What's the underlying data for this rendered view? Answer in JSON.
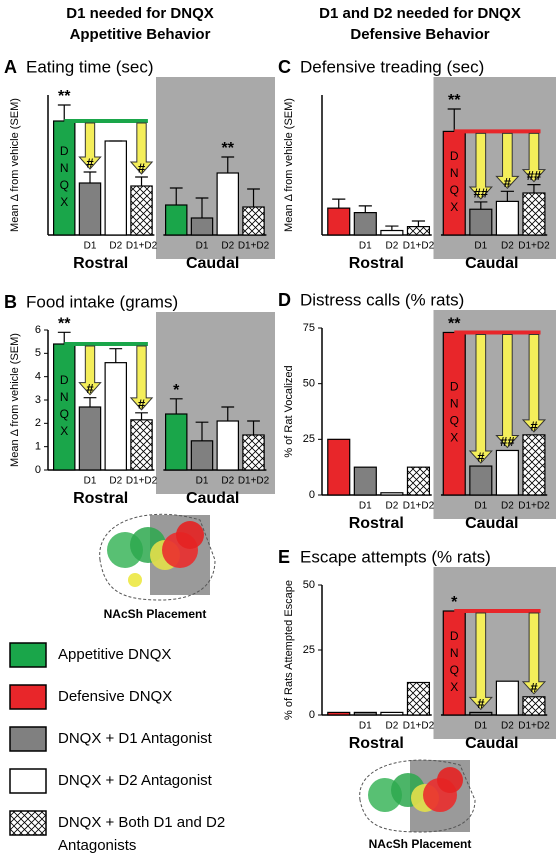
{
  "headings": [
    [
      "D1 needed for DNQX",
      "Appetitive Behavior"
    ],
    [
      "D1 and D2 needed for DNQX",
      "Defensive Behavior"
    ]
  ],
  "chart_data": [
    {
      "type": "bar",
      "panel": "A",
      "title": "Eating time (sec)",
      "ylabel": "Mean Δ  from vehicle (SEM)",
      "ylim": [
        0,
        700
      ],
      "categories": [
        null,
        "D1",
        "D2",
        "D1+D2"
      ],
      "bar_colors": [
        "#1aa64a",
        "#808080",
        "#ffffff",
        "#ffffff"
      ],
      "hatched": [
        false,
        false,
        false,
        true
      ],
      "arrow_color": "#f4ee5a",
      "shade_color": "#a9a9a9",
      "groups": [
        {
          "label": "Rostral",
          "bar_text": "DNQX",
          "values": [
            570,
            260,
            470,
            245
          ],
          "errors": [
            80,
            55,
            0,
            45
          ],
          "annotations": [
            "**",
            "#",
            null,
            "#"
          ]
        },
        {
          "label": "Caudal",
          "shaded": true,
          "values": [
            150,
            85,
            310,
            140
          ],
          "errors": [
            85,
            100,
            80,
            90
          ],
          "annotations": [
            null,
            null,
            "**",
            null
          ]
        }
      ]
    },
    {
      "type": "bar",
      "panel": "B",
      "title": "Food intake (grams)",
      "ylabel": "Mean Δ  from vehicle (SEM)",
      "ylim": [
        0,
        6
      ],
      "yticks": [
        0,
        1,
        2,
        3,
        4,
        5,
        6
      ],
      "categories": [
        null,
        "D1",
        "D2",
        "D1+D2"
      ],
      "bar_colors": [
        "#1aa64a",
        "#808080",
        "#ffffff",
        "#ffffff"
      ],
      "hatched": [
        false,
        false,
        false,
        true
      ],
      "arrow_color": "#f4ee5a",
      "shade_color": "#a9a9a9",
      "groups": [
        {
          "label": "Rostral",
          "bar_text": "DNQX",
          "values": [
            5.4,
            2.7,
            4.6,
            2.15
          ],
          "errors": [
            0.5,
            0.4,
            0.6,
            0.3
          ],
          "annotations": [
            "**",
            "#",
            null,
            "#"
          ]
        },
        {
          "label": "Caudal",
          "shaded": true,
          "values": [
            2.4,
            1.25,
            2.1,
            1.5
          ],
          "errors": [
            0.65,
            0.8,
            0.6,
            0.6
          ],
          "annotations": [
            "*",
            null,
            null,
            null
          ]
        }
      ]
    },
    {
      "type": "bar",
      "panel": "C",
      "title": "Defensive treading (sec)",
      "ylabel": "Mean Δ  from vehicle (SEM)",
      "ylim": [
        0,
        25
      ],
      "categories": [
        null,
        "D1",
        "D2",
        "D1+D2"
      ],
      "bar_colors": [
        "#e8262a",
        "#808080",
        "#ffffff",
        "#ffffff"
      ],
      "hatched": [
        false,
        false,
        false,
        true
      ],
      "arrow_color": "#f4ee5a",
      "shade_color": "#a9a9a9",
      "groups": [
        {
          "label": "Rostral",
          "values": [
            4.8,
            4,
            0.8,
            1.5
          ],
          "errors": [
            1.6,
            1.2,
            0.8,
            1
          ],
          "annotations": [
            null,
            null,
            null,
            null
          ]
        },
        {
          "label": "Caudal",
          "shaded": true,
          "bar_text": "DNQX",
          "values": [
            18.5,
            4.6,
            6,
            7.5
          ],
          "errors": [
            4,
            1.3,
            1.8,
            1.5
          ],
          "annotations": [
            "**",
            "##",
            "#",
            "##"
          ]
        }
      ]
    },
    {
      "type": "bar",
      "panel": "D",
      "title": "Distress calls (% rats)",
      "ylabel": "% of Rat Vocalized",
      "ylim": [
        0,
        75
      ],
      "yticks": [
        0,
        25,
        50,
        75
      ],
      "categories": [
        null,
        "D1",
        "D2",
        "D1+D2"
      ],
      "bar_colors": [
        "#e8262a",
        "#808080",
        "#ffffff",
        "#ffffff"
      ],
      "hatched": [
        false,
        false,
        false,
        true
      ],
      "arrow_color": "#f4ee5a",
      "shade_color": "#a9a9a9",
      "groups": [
        {
          "label": "Rostral",
          "values": [
            25,
            12.5,
            1,
            12.5
          ],
          "annotations": [
            null,
            null,
            null,
            null
          ]
        },
        {
          "label": "Caudal",
          "shaded": true,
          "bar_text": "DNQX",
          "values": [
            73,
            13,
            20,
            27
          ],
          "annotations": [
            "**",
            "#",
            "##",
            "#"
          ]
        }
      ]
    },
    {
      "type": "bar",
      "panel": "E",
      "title": "Escape attempts (% rats)",
      "ylabel": "% of Rats Attempted Escape",
      "ylim": [
        0,
        50
      ],
      "yticks": [
        0,
        25,
        50
      ],
      "categories": [
        null,
        "D1",
        "D2",
        "D1+D2"
      ],
      "bar_colors": [
        "#e8262a",
        "#808080",
        "#ffffff",
        "#ffffff"
      ],
      "hatched": [
        false,
        false,
        false,
        true
      ],
      "arrow_color": "#f4ee5a",
      "shade_color": "#a9a9a9",
      "groups": [
        {
          "label": "Rostral",
          "values": [
            1,
            1,
            1,
            12.5
          ],
          "annotations": [
            null,
            null,
            null,
            null
          ]
        },
        {
          "label": "Caudal",
          "shaded": true,
          "bar_text": "DNQX",
          "values": [
            40,
            1,
            13,
            7
          ],
          "annotations": [
            "*",
            "#",
            null,
            "#"
          ]
        }
      ]
    }
  ],
  "placement_labels": [
    "NAcSh Placement",
    "NAcSh Placement"
  ],
  "legend": [
    {
      "lines": [
        "Appetitive DNQX"
      ],
      "color": "#1aa64a",
      "hatched": false
    },
    {
      "lines": [
        "Defensive DNQX"
      ],
      "color": "#e8262a",
      "hatched": false
    },
    {
      "lines": [
        "DNQX + D1 Antagonist"
      ],
      "color": "#808080",
      "hatched": false
    },
    {
      "lines": [
        "DNQX + D2 Antagonist"
      ],
      "color": "#ffffff",
      "hatched": false
    },
    {
      "lines": [
        "DNQX + Both D1 and D2",
        "Antagonists"
      ],
      "color": "#ffffff",
      "hatched": true
    }
  ]
}
